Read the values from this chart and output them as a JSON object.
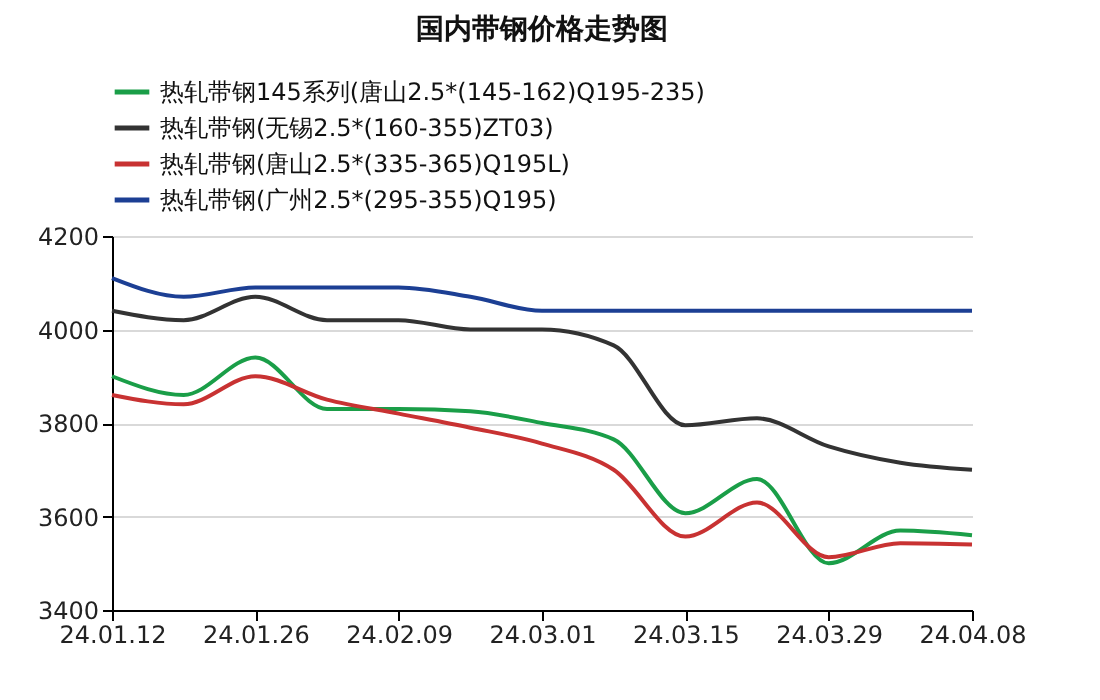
{
  "chart_data": {
    "type": "line",
    "title": "国内带钢价格走势图",
    "categories": [
      "24.01.12",
      null,
      "24.01.26",
      null,
      "24.02.09",
      null,
      "24.03.01",
      null,
      "24.03.15",
      null,
      "24.03.29",
      null,
      "24.04.08"
    ],
    "series": [
      {
        "name": "热轧带钢145系列(唐山2.5*(145-162)Q195-235)",
        "color": "#1a9e48",
        "values": [
          3900,
          3860,
          3940,
          3830,
          3830,
          3825,
          3800,
          3765,
          3607,
          3680,
          3500,
          3570,
          3560
        ]
      },
      {
        "name": "热轧带钢(无锡2.5*(160-355)ZT03)",
        "color": "#333333",
        "values": [
          4040,
          4020,
          4070,
          4020,
          4020,
          4000,
          4000,
          3966,
          3795,
          3810,
          3750,
          3715,
          3700
        ]
      },
      {
        "name": "热轧带钢(唐山2.5*(335-365)Q195L)",
        "color": "#c83232",
        "values": [
          3860,
          3840,
          3900,
          3850,
          3820,
          3790,
          3756,
          3700,
          3557,
          3630,
          3513,
          3543,
          3540
        ]
      },
      {
        "name": "热轧带钢(广州2.5*(295-355)Q195)",
        "color": "#1c3f94",
        "values": [
          4110,
          4070,
          4090,
          4090,
          4090,
          4070,
          4040,
          4040,
          4040,
          4040,
          4040,
          4040,
          4040
        ]
      }
    ],
    "ylim": [
      3400,
      4200
    ],
    "yticks": [
      3400,
      3600,
      3800,
      4000,
      4200
    ],
    "grid": "y",
    "legend": "top",
    "marker": "none",
    "line_style": "solid"
  }
}
